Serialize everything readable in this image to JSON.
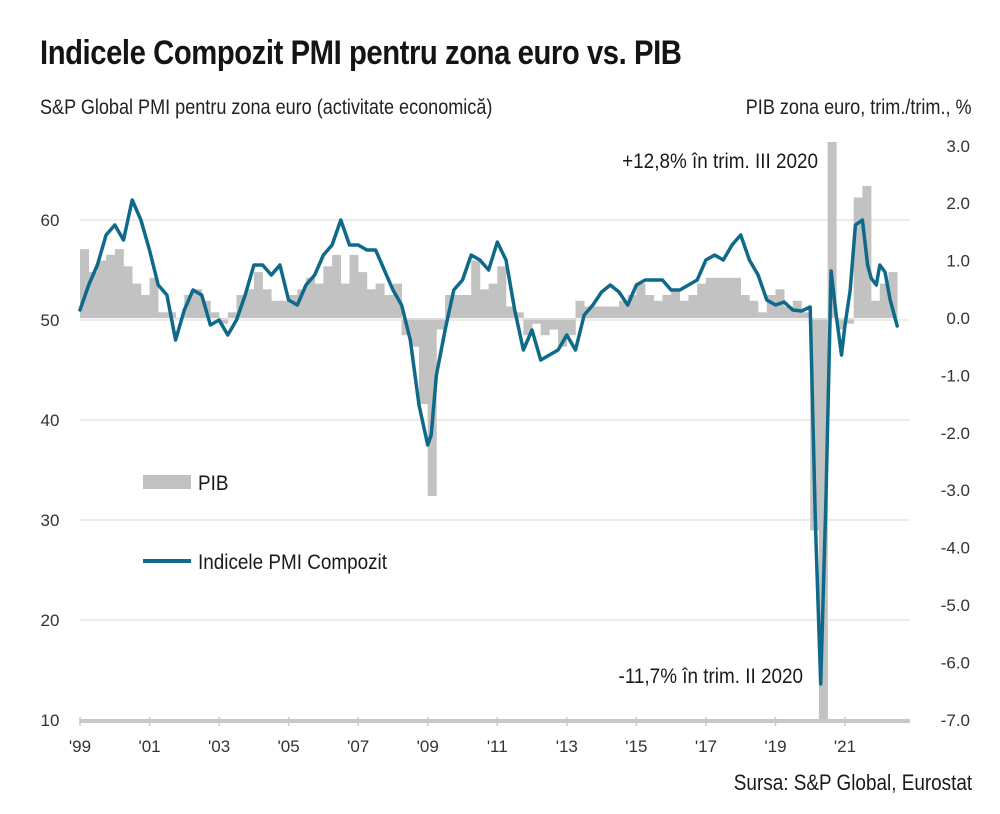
{
  "colors": {
    "pmi_line": "#0f6a8a",
    "gdp_bar": "#c2c2c2",
    "gridline": "#e6e6e6",
    "axis": "#c8c8c8",
    "text": "#1a1a1a"
  },
  "header": {
    "title": "Indicele Compozit PMI pentru zona euro vs. PIB",
    "subtitle_left": "S&P Global PMI pentru zona euro (activitate economică)",
    "subtitle_right": "PIB zona euro, trim./trim., %"
  },
  "footer": {
    "source": "Sursa: S&P Global, Eurostat"
  },
  "chart_data": {
    "type": "bar+line",
    "title": "Indicele Compozit PMI pentru zona euro vs. PIB",
    "left_axis": {
      "label": "S&P Global PMI pentru zona euro (activitate economică)",
      "range": [
        10,
        70
      ],
      "ticks": [
        10,
        20,
        30,
        40,
        50,
        60
      ],
      "tick_labels": [
        "10",
        "20",
        "30",
        "40",
        "50",
        "60"
      ]
    },
    "right_axis": {
      "label": "PIB zona euro, trim./trim., %",
      "range": [
        -7.0,
        3.0
      ],
      "ticks": [
        3.0,
        2.0,
        1.0,
        0.0,
        -1.0,
        -2.0,
        -3.0,
        -4.0,
        -5.0,
        -6.0,
        -7.0
      ],
      "tick_labels": [
        "3.0",
        "2.0",
        "1.0",
        "0.0",
        "-1.0",
        "-2.0",
        "-3.0",
        "-4.0",
        "-5.0",
        "-6.0",
        "-7.0"
      ]
    },
    "x_axis": {
      "range": [
        1999.0,
        2022.6
      ],
      "ticks": [
        1999,
        2001,
        2003,
        2005,
        2007,
        2009,
        2011,
        2013,
        2015,
        2017,
        2019,
        2021
      ],
      "tick_labels": [
        "'99",
        "'01",
        "'03",
        "'05",
        "'07",
        "'09",
        "'11",
        "'13",
        "'15",
        "'17",
        "'19",
        "'21"
      ]
    },
    "gridlines": true,
    "legend": {
      "placement": "middle-left",
      "entries": [
        {
          "label": "PIB",
          "type": "bar"
        },
        {
          "label": "Indicele PMI Compozit",
          "type": "line"
        }
      ]
    },
    "annotations": [
      {
        "text": "+12,8% în trim. III 2020",
        "target": "2020 Q3 GDP"
      },
      {
        "text": "-11,7% în trim.  II 2020",
        "target": "2020 Q2 GDP"
      }
    ],
    "series": [
      {
        "name": "PIB",
        "type": "bar",
        "axis": "right",
        "quarters": [
          "1999Q1",
          "1999Q2",
          "1999Q3",
          "1999Q4",
          "2000Q1",
          "2000Q2",
          "2000Q3",
          "2000Q4",
          "2001Q1",
          "2001Q2",
          "2001Q3",
          "2001Q4",
          "2002Q1",
          "2002Q2",
          "2002Q3",
          "2002Q4",
          "2003Q1",
          "2003Q2",
          "2003Q3",
          "2003Q4",
          "2004Q1",
          "2004Q2",
          "2004Q3",
          "2004Q4",
          "2005Q1",
          "2005Q2",
          "2005Q3",
          "2005Q4",
          "2006Q1",
          "2006Q2",
          "2006Q3",
          "2006Q4",
          "2007Q1",
          "2007Q2",
          "2007Q3",
          "2007Q4",
          "2008Q1",
          "2008Q2",
          "2008Q3",
          "2008Q4",
          "2009Q1",
          "2009Q2",
          "2009Q3",
          "2009Q4",
          "2010Q1",
          "2010Q2",
          "2010Q3",
          "2010Q4",
          "2011Q1",
          "2011Q2",
          "2011Q3",
          "2011Q4",
          "2012Q1",
          "2012Q2",
          "2012Q3",
          "2012Q4",
          "2013Q1",
          "2013Q2",
          "2013Q3",
          "2013Q4",
          "2014Q1",
          "2014Q2",
          "2014Q3",
          "2014Q4",
          "2015Q1",
          "2015Q2",
          "2015Q3",
          "2015Q4",
          "2016Q1",
          "2016Q2",
          "2016Q3",
          "2016Q4",
          "2017Q1",
          "2017Q2",
          "2017Q3",
          "2017Q4",
          "2018Q1",
          "2018Q2",
          "2018Q3",
          "2018Q4",
          "2019Q1",
          "2019Q2",
          "2019Q3",
          "2019Q4",
          "2020Q1",
          "2020Q2",
          "2020Q3",
          "2020Q4",
          "2021Q1",
          "2021Q2",
          "2021Q3",
          "2021Q4",
          "2022Q1",
          "2022Q2"
        ],
        "values": [
          1.2,
          0.8,
          1.0,
          1.1,
          1.2,
          0.9,
          0.6,
          0.4,
          0.7,
          0.1,
          0.1,
          0.0,
          0.4,
          0.5,
          0.3,
          0.1,
          -0.1,
          0.1,
          0.4,
          0.5,
          0.8,
          0.5,
          0.3,
          0.3,
          0.4,
          0.5,
          0.7,
          0.6,
          0.9,
          1.1,
          0.6,
          1.1,
          0.8,
          0.5,
          0.6,
          0.4,
          0.6,
          -0.3,
          -0.5,
          -1.5,
          -3.1,
          -0.2,
          0.4,
          0.4,
          0.4,
          1.0,
          0.5,
          0.6,
          0.9,
          0.2,
          0.1,
          -0.3,
          -0.1,
          -0.3,
          -0.2,
          -0.5,
          -0.3,
          0.3,
          0.2,
          0.2,
          0.2,
          0.2,
          0.3,
          0.4,
          0.6,
          0.4,
          0.3,
          0.4,
          0.5,
          0.3,
          0.4,
          0.6,
          0.7,
          0.7,
          0.7,
          0.7,
          0.4,
          0.3,
          0.1,
          0.4,
          0.5,
          0.2,
          0.3,
          0.1,
          -3.7,
          -11.7,
          12.8,
          -0.2,
          -0.1,
          2.1,
          2.3,
          0.3,
          0.6,
          0.8
        ],
        "note": "2020Q2 and 2020Q3 bars are clipped by the axis range; actual values annotated on chart"
      },
      {
        "name": "Indicele PMI Compozit",
        "type": "line",
        "axis": "left",
        "x": [
          1999.0,
          1999.25,
          1999.5,
          1999.75,
          2000.0,
          2000.25,
          2000.5,
          2000.75,
          2001.0,
          2001.25,
          2001.5,
          2001.75,
          2002.0,
          2002.25,
          2002.5,
          2002.75,
          2003.0,
          2003.25,
          2003.5,
          2003.75,
          2004.0,
          2004.25,
          2004.5,
          2004.75,
          2005.0,
          2005.25,
          2005.5,
          2005.75,
          2006.0,
          2006.25,
          2006.5,
          2006.75,
          2007.0,
          2007.25,
          2007.5,
          2007.75,
          2008.0,
          2008.25,
          2008.5,
          2008.75,
          2009.0,
          2009.1,
          2009.25,
          2009.5,
          2009.75,
          2010.0,
          2010.25,
          2010.5,
          2010.75,
          2011.0,
          2011.25,
          2011.5,
          2011.75,
          2012.0,
          2012.25,
          2012.5,
          2012.75,
          2013.0,
          2013.25,
          2013.5,
          2013.75,
          2014.0,
          2014.25,
          2014.5,
          2014.75,
          2015.0,
          2015.25,
          2015.5,
          2015.75,
          2016.0,
          2016.25,
          2016.5,
          2016.75,
          2017.0,
          2017.25,
          2017.5,
          2017.75,
          2018.0,
          2018.25,
          2018.5,
          2018.75,
          2019.0,
          2019.25,
          2019.5,
          2019.75,
          2020.0,
          2020.15,
          2020.3,
          2020.45,
          2020.6,
          2020.75,
          2020.9,
          2021.0,
          2021.15,
          2021.3,
          2021.5,
          2021.65,
          2021.75,
          2021.9,
          2022.0,
          2022.15,
          2022.3,
          2022.5
        ],
        "values": [
          51.0,
          53.5,
          55.5,
          58.5,
          59.5,
          58.0,
          62.0,
          60.0,
          57.0,
          53.5,
          52.5,
          48.0,
          51.0,
          53.0,
          52.5,
          49.5,
          50.0,
          48.5,
          50.0,
          52.5,
          55.5,
          55.5,
          54.5,
          55.5,
          52.0,
          51.5,
          53.5,
          54.5,
          56.5,
          57.5,
          60.0,
          57.5,
          57.5,
          57.0,
          57.0,
          55.0,
          53.0,
          51.5,
          48.0,
          41.5,
          37.5,
          38.5,
          44.5,
          49.0,
          53.0,
          54.0,
          56.5,
          56.0,
          55.0,
          57.8,
          56.0,
          51.0,
          47.0,
          49.0,
          46.0,
          46.5,
          47.0,
          48.5,
          47.0,
          50.5,
          51.5,
          52.8,
          53.5,
          52.8,
          51.5,
          53.5,
          54.0,
          54.0,
          54.0,
          53.0,
          53.0,
          53.5,
          54.0,
          56.0,
          56.5,
          56.0,
          57.5,
          58.5,
          56.0,
          54.5,
          52.0,
          51.5,
          51.8,
          51.0,
          50.9,
          51.3,
          29.7,
          13.6,
          31.9,
          54.9,
          50.4,
          46.5,
          49.5,
          53.0,
          59.5,
          60.0,
          55.5,
          54.2,
          53.5,
          55.5,
          54.8,
          52.0,
          49.4
        ]
      }
    ]
  }
}
